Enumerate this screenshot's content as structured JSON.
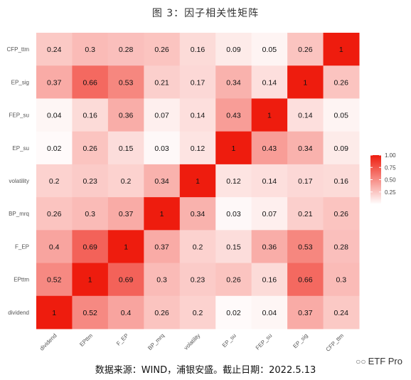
{
  "title": "图 3：因子相关性矩阵",
  "source": "数据来源：WIND，浦银安盛。截止日期：2022.5.13",
  "watermark": "ETF Pro",
  "chart_data": {
    "type": "heatmap",
    "x_categories": [
      "dividend",
      "EPttm",
      "F_EP",
      "BP_mrq",
      "volatility",
      "EP_su",
      "FEP_su",
      "EP_sig",
      "CFP_ttm"
    ],
    "y_categories_top_to_bottom": [
      "CFP_ttm",
      "EP_sig",
      "FEP_su",
      "EP_su",
      "volatility",
      "BP_mrq",
      "F_EP",
      "EPttm",
      "dividend"
    ],
    "values": [
      [
        0.24,
        0.3,
        0.28,
        0.26,
        0.16,
        0.09,
        0.05,
        0.26,
        1
      ],
      [
        0.37,
        0.66,
        0.53,
        0.21,
        0.17,
        0.34,
        0.14,
        1,
        0.26
      ],
      [
        0.04,
        0.16,
        0.36,
        0.07,
        0.14,
        0.43,
        1,
        0.14,
        0.05
      ],
      [
        0.02,
        0.26,
        0.15,
        0.03,
        0.12,
        1,
        0.43,
        0.34,
        0.09
      ],
      [
        0.2,
        0.23,
        0.2,
        0.34,
        1,
        0.12,
        0.14,
        0.17,
        0.16
      ],
      [
        0.26,
        0.3,
        0.37,
        1,
        0.34,
        0.03,
        0.07,
        0.21,
        0.26
      ],
      [
        0.4,
        0.69,
        1,
        0.37,
        0.2,
        0.15,
        0.36,
        0.53,
        0.28
      ],
      [
        0.52,
        1,
        0.69,
        0.3,
        0.23,
        0.26,
        0.16,
        0.66,
        0.3
      ],
      [
        1,
        0.52,
        0.4,
        0.26,
        0.2,
        0.02,
        0.04,
        0.37,
        0.24
      ]
    ],
    "color_low": "#ffffff",
    "color_high": "#ee1c0e",
    "legend": {
      "ticks": [
        "1.00",
        "0.75",
        "0.50",
        "0.25"
      ],
      "tick_values": [
        1.0,
        0.75,
        0.5,
        0.25
      ],
      "range": [
        0,
        1
      ],
      "placement": "right"
    }
  }
}
